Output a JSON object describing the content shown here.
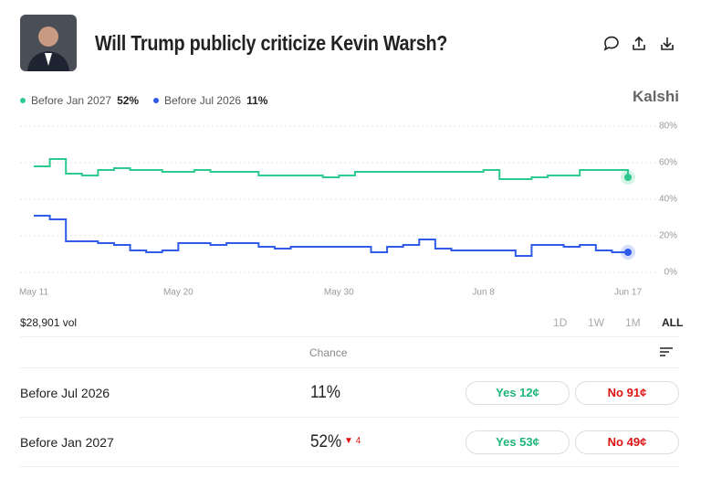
{
  "header": {
    "title": "Will Trump publicly criticize Kevin Warsh?",
    "brand": "Kalshi"
  },
  "chart_data": {
    "type": "line",
    "x": [
      "May 11",
      "May 12",
      "May 13",
      "May 14",
      "May 15",
      "May 16",
      "May 17",
      "May 18",
      "May 19",
      "May 20",
      "May 21",
      "May 22",
      "May 23",
      "May 24",
      "May 25",
      "May 26",
      "May 27",
      "May 28",
      "May 29",
      "May 30",
      "May 31",
      "Jun 1",
      "Jun 2",
      "Jun 3",
      "Jun 4",
      "Jun 5",
      "Jun 6",
      "Jun 7",
      "Jun 8",
      "Jun 9",
      "Jun 10",
      "Jun 11",
      "Jun 12",
      "Jun 13",
      "Jun 14",
      "Jun 15",
      "Jun 16",
      "Jun 17"
    ],
    "series": [
      {
        "name": "Before Jan 2027",
        "color": "#2ec98f",
        "current": 52,
        "current_label": "52%",
        "values": [
          58,
          62,
          54,
          53,
          56,
          57,
          56,
          56,
          55,
          55,
          56,
          55,
          55,
          55,
          53,
          53,
          53,
          53,
          52,
          53,
          55,
          55,
          55,
          55,
          55,
          55,
          55,
          55,
          56,
          51,
          51,
          52,
          53,
          53,
          56,
          56,
          56,
          52
        ]
      },
      {
        "name": "Before Jul 2026",
        "color": "#2f5bea",
        "current": 11,
        "current_label": "11%",
        "values": [
          31,
          29,
          17,
          17,
          16,
          15,
          12,
          11,
          12,
          16,
          16,
          15,
          16,
          16,
          14,
          13,
          14,
          14,
          14,
          14,
          14,
          11,
          14,
          15,
          18,
          13,
          12,
          12,
          12,
          12,
          9,
          15,
          15,
          14,
          15,
          12,
          11,
          11
        ]
      }
    ],
    "ylim": [
      0,
      80
    ],
    "yticks": [
      {
        "value": 0,
        "label": "0%"
      },
      {
        "value": 20,
        "label": "20%"
      },
      {
        "value": 40,
        "label": "40%"
      },
      {
        "value": 60,
        "label": "60%"
      },
      {
        "value": 80,
        "label": "80%"
      }
    ],
    "xticks": [
      "May 11",
      "May 20",
      "May 30",
      "Jun 8",
      "Jun 17"
    ],
    "grid": true
  },
  "volume": "$28,901 vol",
  "ranges": [
    "1D",
    "1W",
    "1M",
    "ALL"
  ],
  "table": {
    "header": "Chance",
    "rows": [
      {
        "name": "Before Jul 2026",
        "chance": "11%",
        "yes": "Yes 12¢",
        "no": "No 91¢"
      },
      {
        "name": "Before Jan 2027",
        "chance": "52%",
        "change": 4,
        "yes": "Yes 53¢",
        "no": "No 49¢"
      }
    ]
  }
}
